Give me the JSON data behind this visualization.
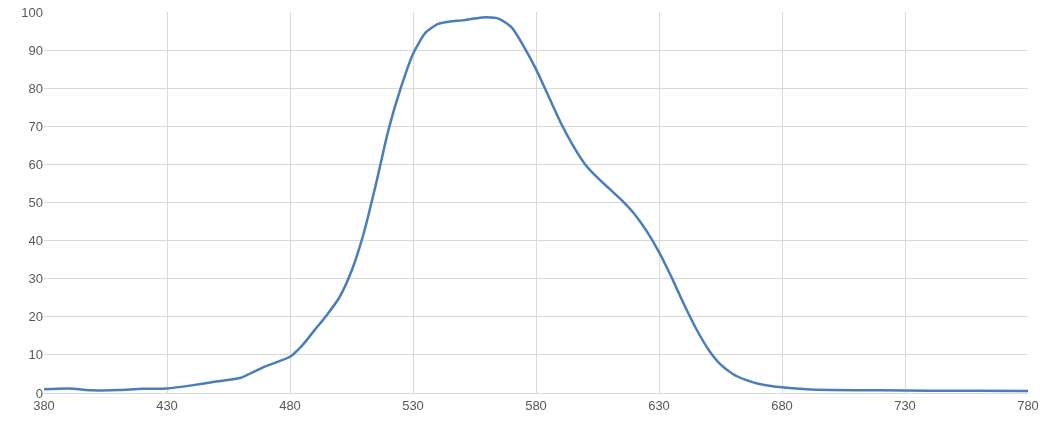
{
  "chart_data": {
    "type": "line",
    "x": [
      380,
      390,
      400,
      410,
      420,
      430,
      440,
      450,
      460,
      465,
      470,
      480,
      485,
      490,
      495,
      500,
      505,
      510,
      515,
      520,
      525,
      530,
      535,
      540,
      545,
      550,
      555,
      560,
      565,
      570,
      575,
      580,
      585,
      590,
      595,
      600,
      605,
      610,
      615,
      620,
      625,
      630,
      635,
      640,
      645,
      650,
      655,
      660,
      665,
      670,
      680,
      690,
      700,
      720,
      740,
      760,
      780
    ],
    "series": [
      {
        "color": "#4a7ebb",
        "values": [
          1,
          1.2,
          0.7,
          0.8,
          1.1,
          1.2,
          2.0,
          3.0,
          4.0,
          5.5,
          7,
          9.5,
          12.5,
          16.5,
          20.5,
          25,
          32,
          42,
          55,
          69,
          80,
          89,
          94.5,
          96.8,
          97.5,
          97.8,
          98.3,
          98.6,
          98.2,
          96,
          91,
          85,
          78,
          71,
          65,
          60,
          56.5,
          53.5,
          50.5,
          47,
          42.5,
          37,
          30.5,
          23.5,
          17,
          11.5,
          7.5,
          5,
          3.5,
          2.5,
          1.5,
          1,
          0.8,
          0.7,
          0.6,
          0.6,
          0.5
        ]
      }
    ],
    "xlim": [
      380,
      780
    ],
    "xticks": [
      380,
      430,
      480,
      530,
      580,
      630,
      680,
      730,
      780
    ],
    "ylim": [
      0,
      100
    ],
    "yticks": [
      0,
      10,
      20,
      30,
      40,
      50,
      60,
      70,
      80,
      90,
      100
    ],
    "grid": true,
    "marker": "none",
    "line_style": "solid"
  }
}
